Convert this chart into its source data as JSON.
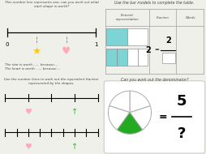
{
  "bg_color": "#f0f0eb",
  "title_top_left": "This number line represents one, can you work out what\neach shape is worth?",
  "title_top_right": "Use the bar models to complete the table.",
  "title_bottom_left": "Use the number lines to work out the equivalent fraction\nrepresented by the shapes.",
  "title_bottom_right": "Can you work out the denominator?",
  "table_headers": [
    "Pictorial\nrepresentation",
    "Fraction",
    "Words"
  ],
  "teal": "#7dd4d4",
  "green": "#33bb33",
  "heart_color": "#ffaabb",
  "star_color": "#ffcc00",
  "border_color": "#aaaaaa",
  "font_color": "#444444",
  "white": "#ffffff",
  "pie_gray": "#aaaaaa",
  "pie_green": "#22aa22"
}
